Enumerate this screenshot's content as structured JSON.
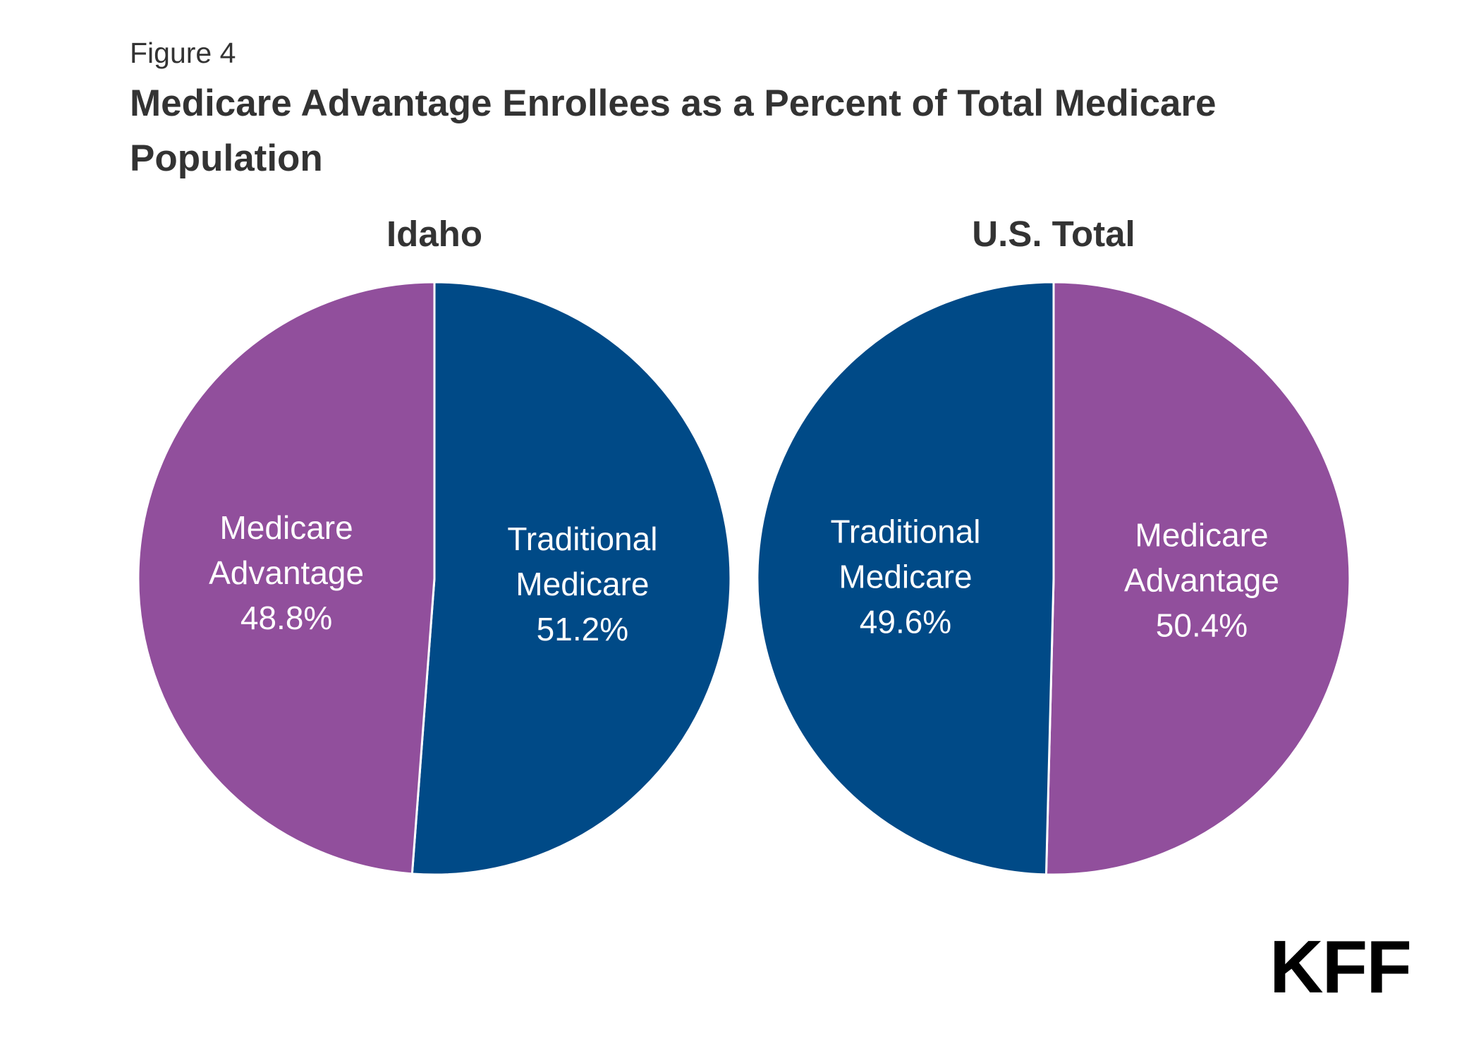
{
  "figure": {
    "label": "Figure 4",
    "title": "Medicare Advantage Enrollees as a Percent of Total Medicare Population"
  },
  "colors": {
    "medicare_advantage": "#914f9c",
    "traditional_medicare": "#004a87",
    "text": "#333333",
    "slice_border": "#ffffff"
  },
  "chart_data": [
    {
      "type": "pie",
      "title": "Idaho",
      "slices": [
        {
          "label_lines": [
            "Traditional",
            "Medicare"
          ],
          "value": 51.2,
          "value_label": "51.2%",
          "color": "#004a87"
        },
        {
          "label_lines": [
            "Medicare",
            "Advantage"
          ],
          "value": 48.8,
          "value_label": "48.8%",
          "color": "#914f9c"
        }
      ]
    },
    {
      "type": "pie",
      "title": "U.S. Total",
      "slices": [
        {
          "label_lines": [
            "Medicare",
            "Advantage"
          ],
          "value": 50.4,
          "value_label": "50.4%",
          "color": "#914f9c"
        },
        {
          "label_lines": [
            "Traditional",
            "Medicare"
          ],
          "value": 49.6,
          "value_label": "49.6%",
          "color": "#004a87"
        }
      ]
    }
  ],
  "logo": {
    "text": "KFF"
  }
}
